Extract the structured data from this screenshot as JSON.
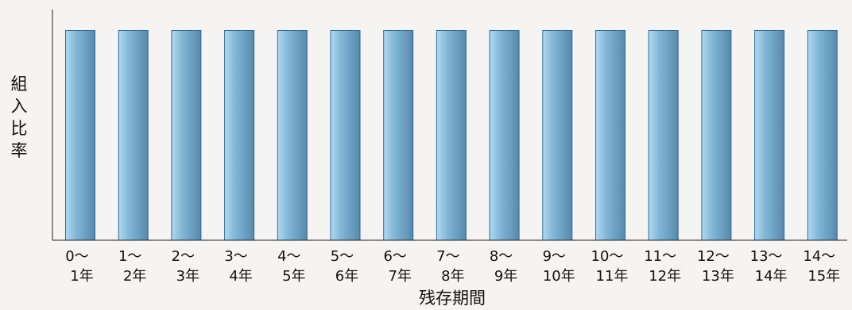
{
  "chart_data": {
    "type": "bar",
    "title": "",
    "xlabel": "残存期間",
    "ylabel": "組入比率",
    "categories": [
      {
        "top": "0～",
        "bottom": "1年"
      },
      {
        "top": "1～",
        "bottom": "2年"
      },
      {
        "top": "2～",
        "bottom": "3年"
      },
      {
        "top": "3～",
        "bottom": "4年"
      },
      {
        "top": "4～",
        "bottom": "5年"
      },
      {
        "top": "5～",
        "bottom": "6年"
      },
      {
        "top": "6～",
        "bottom": "7年"
      },
      {
        "top": "7～",
        "bottom": "8年"
      },
      {
        "top": "8～",
        "bottom": "9年"
      },
      {
        "top": "9～",
        "bottom": "10年"
      },
      {
        "top": "10～",
        "bottom": "11年"
      },
      {
        "top": "11～",
        "bottom": "12年"
      },
      {
        "top": "12～",
        "bottom": "13年"
      },
      {
        "top": "13～",
        "bottom": "14年"
      },
      {
        "top": "14～",
        "bottom": "15年"
      }
    ],
    "values": [
      1,
      1,
      1,
      1,
      1,
      1,
      1,
      1,
      1,
      1,
      1,
      1,
      1,
      1,
      1
    ],
    "ylim": [
      0,
      1.1
    ],
    "grid": false,
    "legend": "none",
    "colors": {
      "bar_edge": "#2b6a98",
      "bar_light": "#b2d9f0",
      "bar_mid": "#82b7d6",
      "bar_dark": "#5889ab",
      "axis": "#222222",
      "background": "#f6f4f2"
    }
  }
}
